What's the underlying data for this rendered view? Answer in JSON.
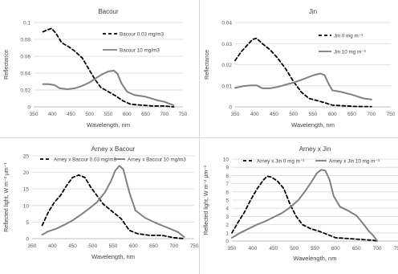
{
  "chart_data": [
    {
      "type": "line",
      "title": "Bacour",
      "xlabel": "Wavelength, nm",
      "ylabel": "Reflectance",
      "xlim": [
        350,
        750
      ],
      "ylim": [
        0,
        0.1
      ],
      "xticks": [
        350,
        400,
        450,
        500,
        550,
        600,
        650,
        700,
        750
      ],
      "yticks": [
        0,
        0.02,
        0.04,
        0.06,
        0.08,
        0.1
      ],
      "xtick_labels": [
        "350",
        "400",
        "450",
        "500",
        "550",
        "600",
        "650",
        "700",
        "750"
      ],
      "ytick_labels": [
        "0",
        "0.02",
        "0.04",
        "0.06",
        "0.08",
        "0.1"
      ],
      "grid": "horizontal",
      "legend_position": "right",
      "series": [
        {
          "name": "Bacour 0.03 mg/m3",
          "style": "dashed",
          "color": "#000000",
          "x": [
            375,
            385,
            398,
            410,
            425,
            445,
            460,
            480,
            500,
            515,
            530,
            550,
            570,
            590,
            610,
            640,
            670,
            700,
            725
          ],
          "y": [
            0.089,
            0.091,
            0.093,
            0.087,
            0.076,
            0.071,
            0.066,
            0.058,
            0.043,
            0.032,
            0.023,
            0.018,
            0.013,
            0.007,
            0.003,
            0.002,
            0.001,
            0.001,
            0.0
          ]
        },
        {
          "name": "Bacour 10 mg/m3",
          "style": "solid",
          "color": "#808080",
          "x": [
            375,
            390,
            405,
            420,
            440,
            460,
            480,
            500,
            520,
            535,
            550,
            565,
            575,
            585,
            600,
            620,
            650,
            680,
            700,
            725
          ],
          "y": [
            0.027,
            0.027,
            0.026,
            0.022,
            0.021,
            0.022,
            0.025,
            0.029,
            0.035,
            0.039,
            0.042,
            0.043,
            0.039,
            0.028,
            0.018,
            0.014,
            0.012,
            0.008,
            0.006,
            0.002
          ]
        }
      ]
    },
    {
      "type": "line",
      "title": "Jin",
      "xlabel": "Wavelength, nm",
      "ylabel": "Reflectance",
      "xlim": [
        350,
        750
      ],
      "ylim": [
        0,
        0.04
      ],
      "xticks": [
        350,
        400,
        450,
        500,
        550,
        600,
        650,
        700,
        750
      ],
      "yticks": [
        0,
        0.01,
        0.02,
        0.03,
        0.04
      ],
      "xtick_labels": [
        "350",
        "400",
        "450",
        "500",
        "550",
        "600",
        "650",
        "700",
        "750"
      ],
      "ytick_labels": [
        "0",
        "0.01",
        "0.02",
        "0.03",
        "0.04"
      ],
      "grid": "horizontal",
      "legend_position": "right",
      "series": [
        {
          "name": "Jin 0 mg m⁻³",
          "style": "dashed",
          "color": "#000000",
          "x": [
            350,
            365,
            380,
            395,
            405,
            420,
            440,
            460,
            480,
            500,
            520,
            540,
            560,
            580,
            600,
            630,
            660,
            700
          ],
          "y": [
            0.022,
            0.026,
            0.029,
            0.032,
            0.0325,
            0.03,
            0.027,
            0.023,
            0.018,
            0.012,
            0.007,
            0.004,
            0.003,
            0.002,
            0.0008,
            0.0005,
            0.0002,
            0.0001
          ]
        },
        {
          "name": "Jin 10 mg m⁻³",
          "style": "solid",
          "color": "#808080",
          "x": [
            350,
            370,
            390,
            405,
            420,
            440,
            460,
            480,
            500,
            520,
            540,
            555,
            570,
            580,
            590,
            600,
            620,
            650,
            680,
            700
          ],
          "y": [
            0.009,
            0.0098,
            0.0102,
            0.0102,
            0.0088,
            0.0088,
            0.0095,
            0.0105,
            0.0115,
            0.0128,
            0.0142,
            0.0152,
            0.0158,
            0.015,
            0.011,
            0.0078,
            0.0072,
            0.0058,
            0.004,
            0.0035
          ]
        }
      ]
    },
    {
      "type": "line",
      "title": "Arney x Bacour",
      "xlabel": "Wavelength, nm",
      "ylabel": "Reflected light, W m⁻² μm⁻¹",
      "xlim": [
        350,
        750
      ],
      "ylim": [
        0,
        25
      ],
      "xticks": [
        350,
        400,
        450,
        500,
        550,
        600,
        650,
        700,
        750
      ],
      "yticks": [
        0,
        5,
        10,
        15,
        20,
        25
      ],
      "xtick_labels": [
        "350",
        "400",
        "450",
        "500",
        "550",
        "600",
        "650",
        "700",
        "750"
      ],
      "ytick_labels": [
        "0",
        "5",
        "10",
        "15",
        "20",
        "25"
      ],
      "grid": "horizontal",
      "legend_position": "top",
      "series": [
        {
          "name": "Arney x Bacour  0.03 mg/m3",
          "style": "dashed",
          "color": "#000000",
          "x": [
            375,
            390,
            405,
            420,
            435,
            450,
            465,
            480,
            495,
            510,
            525,
            540,
            555,
            570,
            590,
            610,
            640,
            670,
            700,
            725
          ],
          "y": [
            4,
            8,
            11,
            13,
            16,
            18.5,
            19.2,
            18.5,
            15.5,
            13,
            10.5,
            9,
            7.5,
            6,
            2.5,
            1.5,
            1,
            1,
            0.3,
            0
          ]
        },
        {
          "name": "Arney x Bacour 10 mg/m3",
          "style": "solid",
          "color": "#808080",
          "x": [
            375,
            390,
            410,
            430,
            450,
            470,
            490,
            510,
            530,
            545,
            555,
            565,
            575,
            590,
            605,
            630,
            660,
            690,
            710,
            725
          ],
          "y": [
            1.2,
            2.2,
            3,
            4.2,
            5.5,
            7.2,
            9,
            11,
            14,
            17.5,
            20.5,
            22,
            21,
            14,
            8.5,
            6.2,
            4.5,
            3,
            2,
            0.5
          ]
        }
      ]
    },
    {
      "type": "line",
      "title": "Arney x Jin",
      "xlabel": "Wavelength, nm",
      "ylabel": "Reflected light, W m⁻² μm⁻¹",
      "xlim": [
        350,
        750
      ],
      "ylim": [
        0,
        10
      ],
      "xticks": [
        350,
        400,
        450,
        500,
        550,
        600,
        650,
        700,
        750
      ],
      "yticks": [
        0,
        1,
        2,
        3,
        4,
        5,
        6,
        7,
        8,
        9,
        10
      ],
      "xtick_labels": [
        "350",
        "400",
        "450",
        "500",
        "550",
        "600",
        "650",
        "700",
        "750"
      ],
      "ytick_labels": [
        "0",
        "1",
        "2",
        "3",
        "4",
        "5",
        "6",
        "7",
        "8",
        "9",
        "10"
      ],
      "grid": "horizontal",
      "legend_position": "top",
      "series": [
        {
          "name": "Arney x Jin 0 mg m⁻³",
          "style": "dashed",
          "color": "#000000",
          "x": [
            350,
            365,
            380,
            395,
            410,
            425,
            435,
            445,
            460,
            475,
            490,
            505,
            520,
            540,
            560,
            580,
            600,
            630,
            660,
            690,
            700
          ],
          "y": [
            1.0,
            2.3,
            3.5,
            5.0,
            6.3,
            7.4,
            7.9,
            7.8,
            7.3,
            6.4,
            4.5,
            3.0,
            2.0,
            1.5,
            1.2,
            0.8,
            0.4,
            0.3,
            0.2,
            0.1,
            0.0
          ]
        },
        {
          "name": "Arney x Jin 10 mg m⁻³",
          "style": "solid",
          "color": "#808080",
          "x": [
            350,
            370,
            390,
            410,
            430,
            450,
            470,
            490,
            510,
            525,
            540,
            555,
            565,
            575,
            585,
            595,
            610,
            630,
            650,
            665,
            680,
            690,
            700
          ],
          "y": [
            0.4,
            1.0,
            1.5,
            2.0,
            2.4,
            2.9,
            3.4,
            4.1,
            5.0,
            6.0,
            7.1,
            8.3,
            8.7,
            8.6,
            7.5,
            5.5,
            4.2,
            3.7,
            3.1,
            2.2,
            1.2,
            0.7,
            0.0
          ]
        }
      ]
    }
  ]
}
